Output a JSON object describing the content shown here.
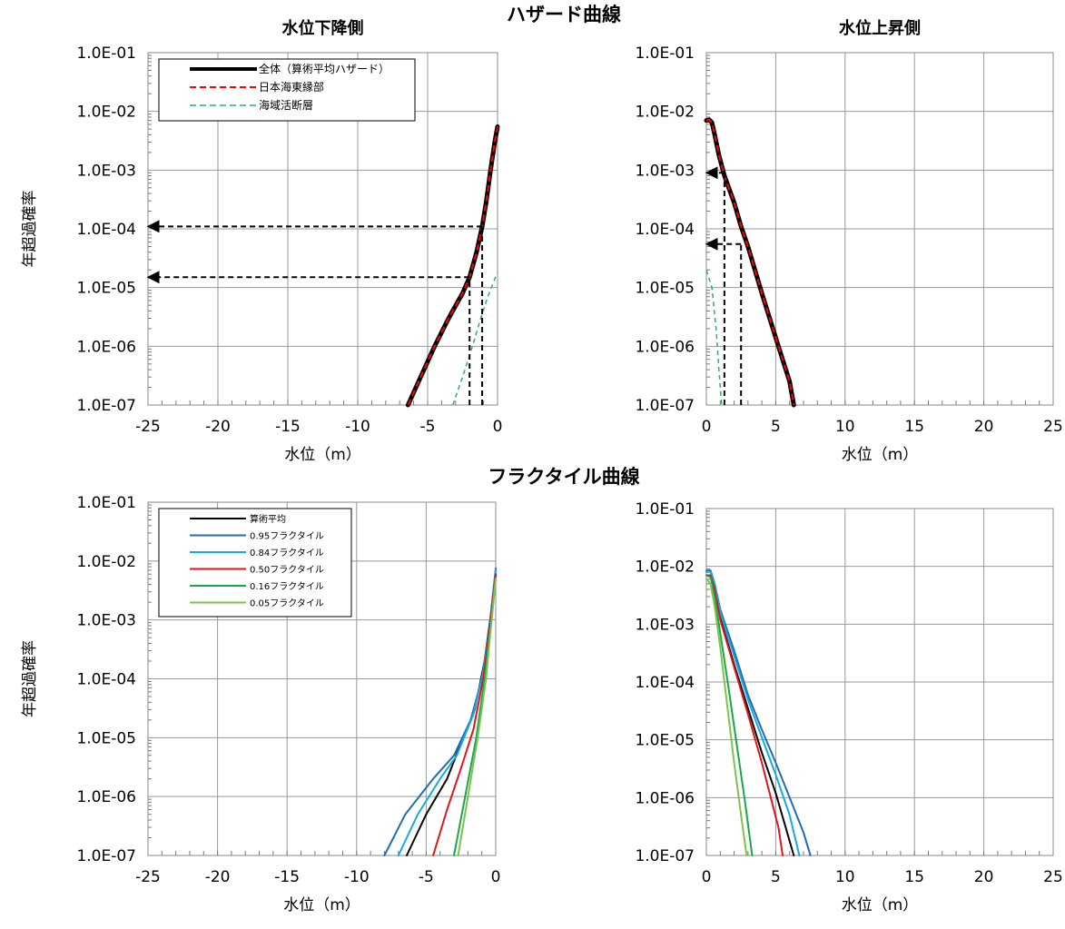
{
  "titles": {
    "hazard": "ハザード曲線",
    "fractile": "フラクタイル曲線"
  },
  "chart_data": [
    {
      "id": "hz-down",
      "type": "line",
      "title": "水位下降側",
      "xlabel": "水位（m）",
      "ylabel": "年超過確率",
      "xlim": [
        -25,
        0
      ],
      "ylim": [
        1e-07,
        0.1
      ],
      "ylog": true,
      "xticks": [
        "-25",
        "-20",
        "-15",
        "-10",
        "-5",
        "0"
      ],
      "yticks": [
        "1.0E-07",
        "1.0E-06",
        "1.0E-05",
        "1.0E-04",
        "1.0E-03",
        "1.0E-02",
        "1.0E-01"
      ],
      "grid": true,
      "legend_position": "top-left",
      "series": [
        {
          "name": "全体（算術平均ハザード）",
          "color": "#000000",
          "style": "solid",
          "width": 5,
          "points": [
            [
              -6.4,
              1e-07
            ],
            [
              -5.5,
              3e-07
            ],
            [
              -4.5,
              1e-06
            ],
            [
              -3.5,
              3e-06
            ],
            [
              -2.5,
              8e-06
            ],
            [
              -2.0,
              1.5e-05
            ],
            [
              -1.5,
              4e-05
            ],
            [
              -1.1,
              0.00011
            ],
            [
              -0.8,
              0.0003
            ],
            [
              -0.5,
              0.001
            ],
            [
              -0.2,
              0.003
            ],
            [
              0,
              0.0055
            ]
          ]
        },
        {
          "name": "日本海東縁部",
          "color": "#ff0000",
          "style": "dashed",
          "width": 2,
          "points": [
            [
              -6.4,
              1e-07
            ],
            [
              -5.5,
              3e-07
            ],
            [
              -4.5,
              1e-06
            ],
            [
              -3.5,
              3e-06
            ],
            [
              -2.5,
              8e-06
            ],
            [
              -2.0,
              1.5e-05
            ],
            [
              -1.5,
              4e-05
            ],
            [
              -1.1,
              0.00011
            ],
            [
              -0.8,
              0.0003
            ],
            [
              -0.5,
              0.001
            ],
            [
              -0.2,
              0.003
            ],
            [
              0,
              0.0055
            ]
          ]
        },
        {
          "name": "海域活断層",
          "color": "#2fb060",
          "style": "dashed",
          "width": 1.5,
          "points": [
            [
              -3.2,
              1e-07
            ],
            [
              -2.5,
              3e-07
            ],
            [
              -1.8,
              1e-06
            ],
            [
              -1.2,
              3e-06
            ],
            [
              -0.7,
              7e-06
            ],
            [
              -0.2,
              1.4e-05
            ],
            [
              0,
              1.8e-05
            ]
          ]
        }
      ],
      "annotations": [
        {
          "arrow": true,
          "points": [
            [
              -1.1,
              0.00011
            ],
            [
              -25,
              0.00011
            ]
          ]
        },
        {
          "arrow": true,
          "points": [
            [
              -2.0,
              1.5e-05
            ],
            [
              -25,
              1.5e-05
            ]
          ]
        },
        {
          "arrow": false,
          "points": [
            [
              -1.1,
              1e-07
            ],
            [
              -1.1,
              0.00011
            ]
          ]
        },
        {
          "arrow": false,
          "points": [
            [
              -2.0,
              1e-07
            ],
            [
              -2.0,
              1.5e-05
            ]
          ]
        }
      ]
    },
    {
      "id": "hz-up",
      "type": "line",
      "title": "水位上昇側",
      "xlabel": "水位（m）",
      "ylabel": "",
      "xlim": [
        0,
        25
      ],
      "ylim": [
        1e-07,
        0.1
      ],
      "ylog": true,
      "xticks": [
        "0",
        "5",
        "10",
        "15",
        "20",
        "25"
      ],
      "yticks": [
        "1.0E-07",
        "1.0E-06",
        "1.0E-05",
        "1.0E-04",
        "1.0E-03",
        "1.0E-02",
        "1.0E-01"
      ],
      "grid": true,
      "series": [
        {
          "name": "全体（算術平均ハザード）",
          "color": "#000000",
          "style": "solid",
          "width": 5,
          "points": [
            [
              0,
              0.007
            ],
            [
              0.2,
              0.0072
            ],
            [
              0.4,
              0.0065
            ],
            [
              0.6,
              0.004
            ],
            [
              0.9,
              0.0018
            ],
            [
              1.3,
              0.0008
            ],
            [
              2.0,
              0.00028
            ],
            [
              2.5,
              0.00011
            ],
            [
              3.0,
              5e-05
            ],
            [
              4.0,
              8e-06
            ],
            [
              5.0,
              1.4e-06
            ],
            [
              6.0,
              2.5e-07
            ],
            [
              6.3,
              1e-07
            ]
          ]
        },
        {
          "name": "日本海東縁部",
          "color": "#ff0000",
          "style": "dashed",
          "width": 2,
          "points": [
            [
              0,
              0.007
            ],
            [
              0.2,
              0.0072
            ],
            [
              0.4,
              0.0065
            ],
            [
              0.6,
              0.004
            ],
            [
              0.9,
              0.0018
            ],
            [
              1.3,
              0.0008
            ],
            [
              2.0,
              0.00028
            ],
            [
              2.5,
              0.00011
            ],
            [
              3.0,
              5e-05
            ],
            [
              4.0,
              8e-06
            ],
            [
              5.0,
              1.4e-06
            ],
            [
              6.0,
              2.5e-07
            ],
            [
              6.3,
              1e-07
            ]
          ]
        },
        {
          "name": "海域活断層",
          "color": "#2fb060",
          "style": "dashed",
          "width": 1.5,
          "points": [
            [
              0,
              2e-05
            ],
            [
              0.4,
              1e-05
            ],
            [
              0.7,
              2e-06
            ],
            [
              0.9,
              4e-07
            ],
            [
              1.1,
              1e-07
            ]
          ]
        }
      ],
      "annotations": [
        {
          "arrow": true,
          "points": [
            [
              1.3,
              0.0009
            ],
            [
              0,
              0.0009
            ]
          ]
        },
        {
          "arrow": true,
          "points": [
            [
              2.5,
              5.5e-05
            ],
            [
              0,
              5.5e-05
            ]
          ]
        },
        {
          "arrow": false,
          "points": [
            [
              1.3,
              1e-07
            ],
            [
              1.3,
              0.0009
            ]
          ]
        },
        {
          "arrow": false,
          "points": [
            [
              2.5,
              1e-07
            ],
            [
              2.5,
              5.5e-05
            ]
          ]
        }
      ]
    },
    {
      "id": "fr-down",
      "type": "line",
      "title": "",
      "xlabel": "水位（m）",
      "ylabel": "年超過確率",
      "xlim": [
        -25,
        0
      ],
      "ylim": [
        1e-07,
        0.1
      ],
      "ylog": true,
      "xticks": [
        "-25",
        "-20",
        "-15",
        "-10",
        "-5",
        "0"
      ],
      "yticks": [
        "1.0E-07",
        "1.0E-06",
        "1.0E-05",
        "1.0E-04",
        "1.0E-03",
        "1.0E-02",
        "1.0E-01"
      ],
      "grid": true,
      "legend_position": "top-left",
      "series": [
        {
          "name": "算術平均",
          "color": "#000000",
          "style": "solid",
          "width": 2,
          "points": [
            [
              -6.4,
              1e-07
            ],
            [
              -5,
              5e-07
            ],
            [
              -3.5,
              2e-06
            ],
            [
              -2.5,
              8e-06
            ],
            [
              -1.5,
              3e-05
            ],
            [
              -0.8,
              0.0002
            ],
            [
              -0.3,
              0.0015
            ],
            [
              0,
              0.006
            ]
          ]
        },
        {
          "name": "0.95フラクタイル",
          "color": "#1f6db5",
          "style": "solid",
          "width": 2,
          "points": [
            [
              -8,
              1e-07
            ],
            [
              -6.5,
              5e-07
            ],
            [
              -4.5,
              2e-06
            ],
            [
              -3.0,
              5e-06
            ],
            [
              -1.8,
              2e-05
            ],
            [
              -1.0,
              0.0001
            ],
            [
              -0.5,
              0.0006
            ],
            [
              0,
              0.0075
            ]
          ]
        },
        {
          "name": "0.84フラクタイル",
          "color": "#18a9e0",
          "style": "solid",
          "width": 2,
          "points": [
            [
              -7,
              1e-07
            ],
            [
              -5.6,
              5e-07
            ],
            [
              -4,
              2e-06
            ],
            [
              -2.8,
              5e-06
            ],
            [
              -1.6,
              2.5e-05
            ],
            [
              -0.9,
              0.00013
            ],
            [
              -0.4,
              0.0008
            ],
            [
              0,
              0.007
            ]
          ]
        },
        {
          "name": "0.50フラクタイル",
          "color": "#e0141b",
          "style": "solid",
          "width": 2,
          "points": [
            [
              -4.5,
              1e-07
            ],
            [
              -3.5,
              6e-07
            ],
            [
              -2.5,
              3e-06
            ],
            [
              -1.6,
              1.4e-05
            ],
            [
              -0.9,
              0.0001
            ],
            [
              -0.4,
              0.0008
            ],
            [
              0,
              0.006
            ]
          ]
        },
        {
          "name": "0.16フラクタイル",
          "color": "#1aa64a",
          "style": "solid",
          "width": 2,
          "points": [
            [
              -3.0,
              1e-07
            ],
            [
              -2.2,
              1e-06
            ],
            [
              -1.4,
              1e-05
            ],
            [
              -0.8,
              0.0001
            ],
            [
              -0.3,
              0.001
            ],
            [
              0,
              0.005
            ]
          ]
        },
        {
          "name": "0.05フラクタイル",
          "color": "#7cc24e",
          "style": "solid",
          "width": 2,
          "points": [
            [
              -2.7,
              1e-07
            ],
            [
              -2.0,
              1e-06
            ],
            [
              -1.3,
              1e-05
            ],
            [
              -0.7,
              0.0001
            ],
            [
              -0.3,
              0.001
            ],
            [
              0,
              0.005
            ]
          ]
        }
      ]
    },
    {
      "id": "fr-up",
      "type": "line",
      "title": "",
      "xlabel": "水位（m）",
      "ylabel": "",
      "xlim": [
        0,
        25
      ],
      "ylim": [
        1e-07,
        0.1
      ],
      "ylog": true,
      "xticks": [
        "0",
        "5",
        "10",
        "15",
        "20",
        "25"
      ],
      "yticks": [
        "1.0E-07",
        "1.0E-06",
        "1.0E-05",
        "1.0E-04",
        "1.0E-03",
        "1.0E-02",
        "1.0E-01"
      ],
      "grid": true,
      "series": [
        {
          "name": "算術平均",
          "color": "#000000",
          "style": "solid",
          "width": 2,
          "points": [
            [
              0,
              0.007
            ],
            [
              0.3,
              0.007
            ],
            [
              0.6,
              0.004
            ],
            [
              1.0,
              0.0013
            ],
            [
              2.0,
              0.0002
            ],
            [
              3.0,
              3.5e-05
            ],
            [
              4.0,
              6e-06
            ],
            [
              5.0,
              1.2e-06
            ],
            [
              6.3,
              1e-07
            ]
          ]
        },
        {
          "name": "0.95フラクタイル",
          "color": "#1f6db5",
          "style": "solid",
          "width": 2,
          "points": [
            [
              0,
              0.0085
            ],
            [
              0.3,
              0.0085
            ],
            [
              0.6,
              0.005
            ],
            [
              1.0,
              0.0018
            ],
            [
              2.0,
              0.00035
            ],
            [
              3.0,
              6e-05
            ],
            [
              4.0,
              1.5e-05
            ],
            [
              5.0,
              4e-06
            ],
            [
              6.0,
              1e-06
            ],
            [
              7.0,
              2.5e-07
            ],
            [
              7.5,
              1e-07
            ]
          ]
        },
        {
          "name": "0.84フラクタイル",
          "color": "#18a9e0",
          "style": "solid",
          "width": 2,
          "points": [
            [
              0,
              0.008
            ],
            [
              0.3,
              0.008
            ],
            [
              0.6,
              0.005
            ],
            [
              1.0,
              0.0016
            ],
            [
              2.0,
              0.00028
            ],
            [
              3.0,
              5e-05
            ],
            [
              4.0,
              1.1e-05
            ],
            [
              5.0,
              2.5e-06
            ],
            [
              6.0,
              5e-07
            ],
            [
              6.7,
              1e-07
            ]
          ]
        },
        {
          "name": "0.50フラクタイル",
          "color": "#e0141b",
          "style": "solid",
          "width": 2,
          "points": [
            [
              0,
              0.007
            ],
            [
              0.3,
              0.007
            ],
            [
              0.6,
              0.004
            ],
            [
              1.0,
              0.0012
            ],
            [
              2.0,
              0.00018
            ],
            [
              3.0,
              2.8e-05
            ],
            [
              4.0,
              4e-06
            ],
            [
              5.2,
              3e-07
            ],
            [
              5.5,
              1e-07
            ]
          ]
        },
        {
          "name": "0.16フラクタイル",
          "color": "#1aa64a",
          "style": "solid",
          "width": 2,
          "points": [
            [
              0,
              0.007
            ],
            [
              0.3,
              0.0065
            ],
            [
              0.6,
              0.003
            ],
            [
              1.0,
              0.0007
            ],
            [
              1.6,
              8e-05
            ],
            [
              2.2,
              8e-06
            ],
            [
              2.8,
              8e-07
            ],
            [
              3.3,
              1e-07
            ]
          ]
        },
        {
          "name": "0.05フラクタイル",
          "color": "#7cc24e",
          "style": "solid",
          "width": 2,
          "points": [
            [
              0,
              0.006
            ],
            [
              0.3,
              0.005
            ],
            [
              0.6,
              0.002
            ],
            [
              1.0,
              0.0004
            ],
            [
              1.5,
              4e-05
            ],
            [
              2.0,
              4e-06
            ],
            [
              2.5,
              5e-07
            ],
            [
              2.9,
              1e-07
            ]
          ]
        }
      ]
    }
  ]
}
